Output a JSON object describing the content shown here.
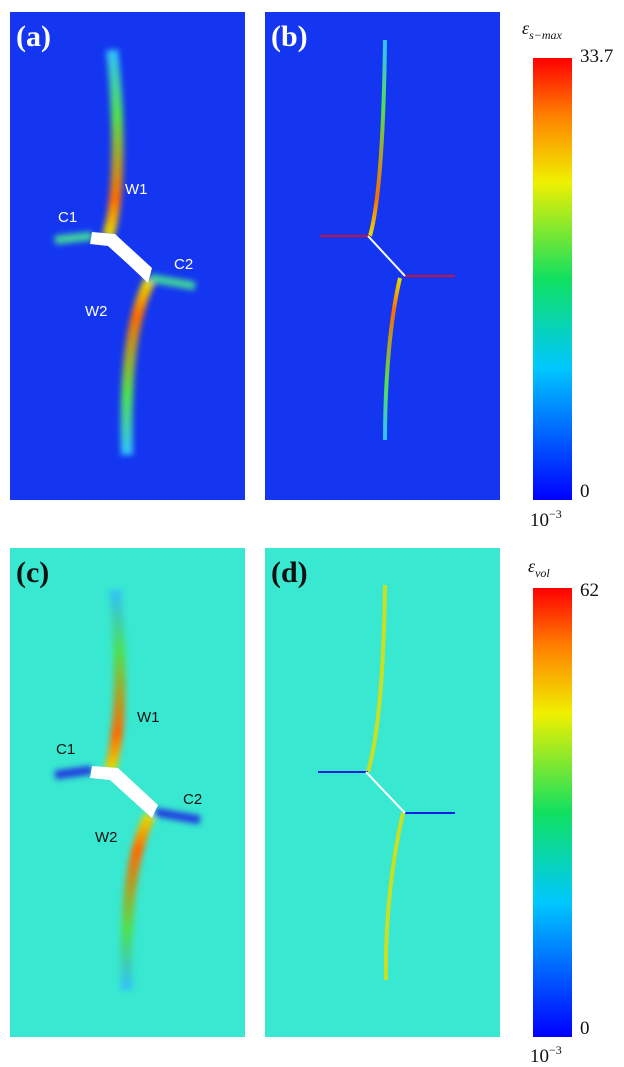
{
  "panels": [
    {
      "label": "(a)",
      "annotations": [
        "C1",
        "W1",
        "C2",
        "W2"
      ]
    },
    {
      "label": "(b)"
    },
    {
      "label": "(c)",
      "annotations": [
        "W1",
        "C1",
        "C2",
        "W2"
      ]
    },
    {
      "label": "(d)"
    }
  ],
  "colorbars": [
    {
      "title": {
        "symbol": "ε",
        "subscript": "s−max"
      },
      "max": "33.7",
      "min": "0",
      "unit": {
        "base": "10",
        "exponent": "−3"
      }
    },
    {
      "title": {
        "symbol": "ε",
        "subscript": "vol"
      },
      "max": "62",
      "min": "0",
      "unit": {
        "base": "10",
        "exponent": "−3"
      }
    }
  ]
}
